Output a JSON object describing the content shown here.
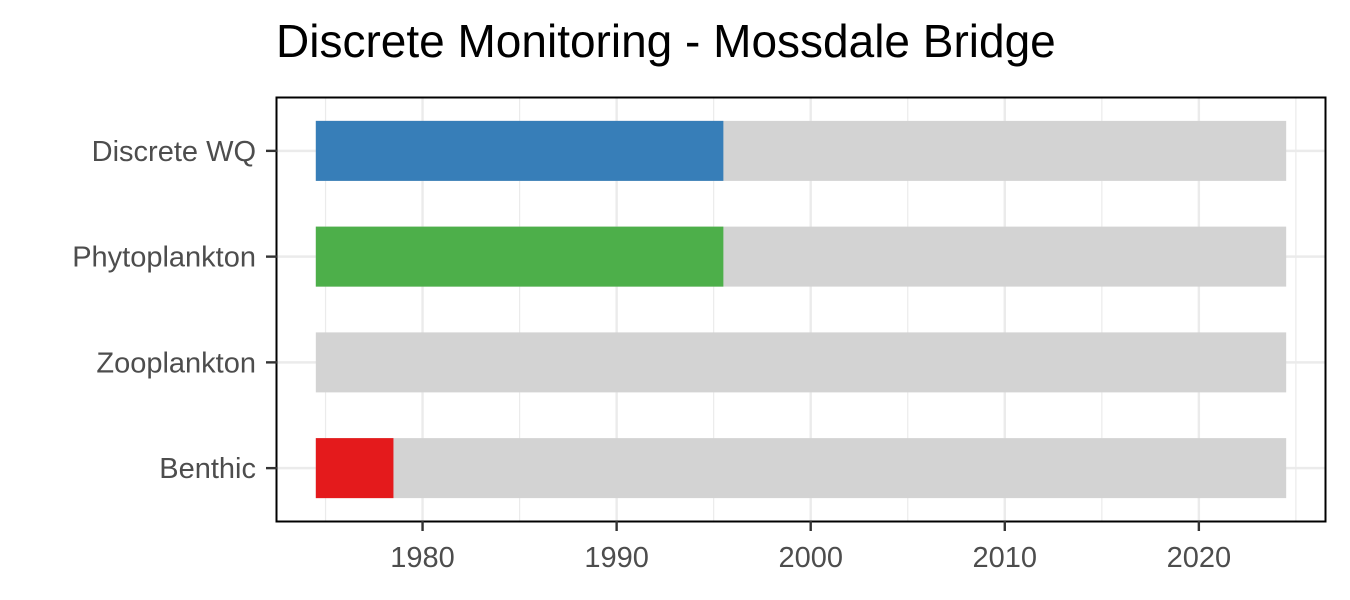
{
  "chart_data": {
    "type": "bar",
    "orientation": "horizontal",
    "title": "Discrete Monitoring - Mossdale Bridge",
    "xlabel": "",
    "ylabel": "",
    "xlim": [
      1972.5,
      2026.5
    ],
    "xticks": [
      1980,
      1990,
      2000,
      2010,
      2020
    ],
    "xtick_labels": [
      "1980",
      "1990",
      "2000",
      "2010",
      "2020"
    ],
    "categories": [
      "Discrete WQ",
      "Phytoplankton",
      "Zooplankton",
      "Benthic"
    ],
    "background_range": [
      1974.5,
      2024.5
    ],
    "series": [
      {
        "category": "Discrete WQ",
        "start": 1974.5,
        "end": 1995.5,
        "color": "#377eb8"
      },
      {
        "category": "Phytoplankton",
        "start": 1974.5,
        "end": 1995.5,
        "color": "#4daf4a"
      },
      {
        "category": "Zooplankton",
        "start": null,
        "end": null,
        "color": null
      },
      {
        "category": "Benthic",
        "start": 1974.5,
        "end": 1978.5,
        "color": "#e41a1c"
      }
    ],
    "background_color": "#d3d3d3",
    "grid": true,
    "legend": "none"
  }
}
